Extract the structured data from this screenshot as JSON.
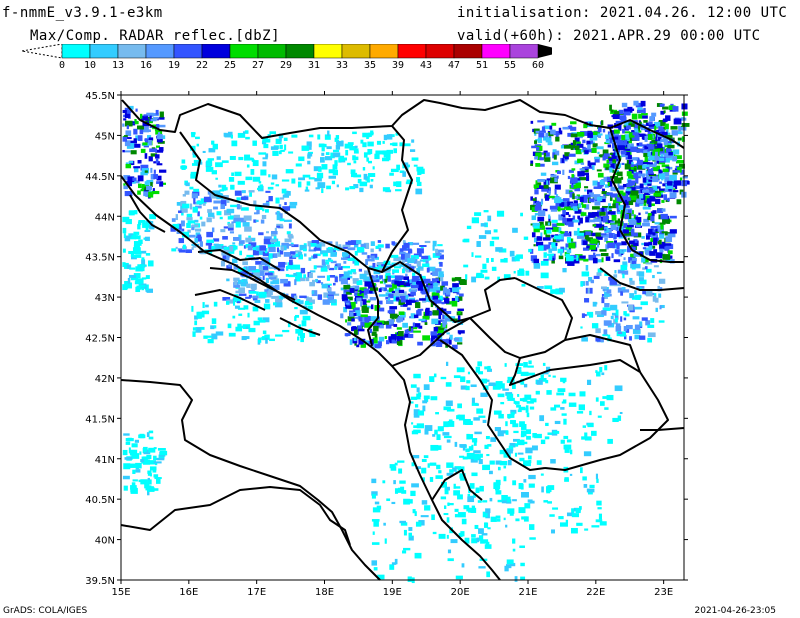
{
  "header": {
    "model": "f-nmmE_v3.9.1-e3km",
    "product": "Max/Comp. RADAR reflec.[dbZ]",
    "init": "initialisation: 2021.04.26. 12:00 UTC",
    "valid": "valid(+60h): 2021.APR.29 00:00 UTC"
  },
  "colorbar": {
    "labels": [
      "0",
      "10",
      "13",
      "16",
      "19",
      "22",
      "25",
      "27",
      "29",
      "31",
      "33",
      "35",
      "39",
      "43",
      "47",
      "51",
      "55",
      "60"
    ],
    "colors": [
      "#00ffff",
      "#33ccff",
      "#77bbee",
      "#5599ff",
      "#3355ff",
      "#0000dd",
      "#00dd00",
      "#00bb00",
      "#008800",
      "#ffff00",
      "#ddbb00",
      "#ffaa00",
      "#ff0000",
      "#dd0000",
      "#aa0000",
      "#ff00ff",
      "#aa44dd",
      "#000000"
    ]
  },
  "axes": {
    "y_ticks": [
      "45.5N",
      "45N",
      "44.5N",
      "44N",
      "43.5N",
      "43N",
      "42.5N",
      "42N",
      "41.5N",
      "41N",
      "40.5N",
      "40N",
      "39.5N"
    ],
    "x_ticks": [
      "15E",
      "16E",
      "17E",
      "18E",
      "19E",
      "20E",
      "21E",
      "22E",
      "23E"
    ]
  },
  "map": {
    "extent": {
      "lon": [
        15,
        23.3
      ],
      "lat": [
        39.5,
        45.5
      ]
    }
  },
  "footer": {
    "left": "GrADS: COLA/IGES",
    "right": "2021-04-26-23:05"
  }
}
